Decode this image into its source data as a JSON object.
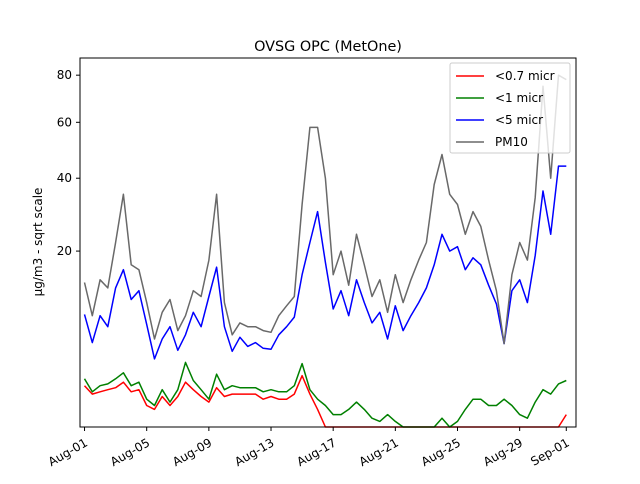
{
  "chart_data": {
    "type": "line",
    "title": "OVSG OPC (MetOne)",
    "xlabel": "",
    "ylabel": "µg/m3 - sqrt scale",
    "y_scale": "sqrt",
    "ylim": [
      0,
      88
    ],
    "xlim": [
      "2024-07-31T17:00",
      "2024-09-01T15:00"
    ],
    "x_tick_labels": [
      "Aug-01",
      "Aug-05",
      "Aug-09",
      "Aug-13",
      "Aug-17",
      "Aug-21",
      "Aug-25",
      "Aug-29",
      "Sep-01"
    ],
    "x_tick_dates": [
      "2024-08-01",
      "2024-08-05",
      "2024-08-09",
      "2024-08-13",
      "2024-08-17",
      "2024-08-21",
      "2024-08-25",
      "2024-08-29",
      "2024-09-01"
    ],
    "y_ticks": [
      20,
      40,
      60,
      80
    ],
    "grid": false,
    "legend_position": "top-right",
    "x": [
      "2024-08-01T00:00",
      "2024-08-01T12:00",
      "2024-08-02T00:00",
      "2024-08-02T12:00",
      "2024-08-03T00:00",
      "2024-08-03T12:00",
      "2024-08-04T00:00",
      "2024-08-04T12:00",
      "2024-08-05T00:00",
      "2024-08-05T12:00",
      "2024-08-06T00:00",
      "2024-08-06T12:00",
      "2024-08-07T00:00",
      "2024-08-07T12:00",
      "2024-08-08T00:00",
      "2024-08-08T12:00",
      "2024-08-09T00:00",
      "2024-08-09T12:00",
      "2024-08-10T00:00",
      "2024-08-10T12:00",
      "2024-08-11T00:00",
      "2024-08-11T12:00",
      "2024-08-12T00:00",
      "2024-08-12T12:00",
      "2024-08-13T00:00",
      "2024-08-13T12:00",
      "2024-08-14T00:00",
      "2024-08-14T12:00",
      "2024-08-15T00:00",
      "2024-08-15T12:00",
      "2024-08-16T00:00",
      "2024-08-16T12:00",
      "2024-08-17T00:00",
      "2024-08-17T12:00",
      "2024-08-18T00:00",
      "2024-08-18T12:00",
      "2024-08-19T00:00",
      "2024-08-19T12:00",
      "2024-08-20T00:00",
      "2024-08-20T12:00",
      "2024-08-21T00:00",
      "2024-08-21T12:00",
      "2024-08-22T00:00",
      "2024-08-22T12:00",
      "2024-08-23T00:00",
      "2024-08-23T12:00",
      "2024-08-24T00:00",
      "2024-08-24T12:00",
      "2024-08-25T00:00",
      "2024-08-25T12:00",
      "2024-08-26T00:00",
      "2024-08-26T12:00",
      "2024-08-27T00:00",
      "2024-08-27T12:00",
      "2024-08-28T00:00",
      "2024-08-28T12:00",
      "2024-08-29T00:00",
      "2024-08-29T12:00",
      "2024-08-30T00:00",
      "2024-08-30T12:00",
      "2024-08-31T00:00",
      "2024-08-31T12:00",
      "2024-09-01T00:00"
    ],
    "series": [
      {
        "name": "<0.7 micr",
        "color": "#ff0000",
        "values": [
          1.1,
          0.7,
          0.8,
          0.9,
          1.0,
          1.3,
          0.8,
          0.9,
          0.3,
          0.2,
          0.6,
          0.3,
          0.6,
          1.3,
          0.9,
          0.6,
          0.4,
          1.0,
          0.6,
          0.7,
          0.7,
          0.7,
          0.7,
          0.5,
          0.6,
          0.5,
          0.5,
          0.7,
          1.7,
          0.7,
          0.2,
          0.0,
          0.0,
          0.0,
          0.0,
          0.0,
          0.0,
          0.0,
          0.0,
          0.0,
          0.0,
          0.0,
          0.0,
          0.0,
          0.0,
          0.0,
          0.0,
          0.0,
          0.0,
          0.0,
          0.0,
          0.0,
          0.0,
          0.0,
          0.0,
          0.0,
          0.0,
          0.0,
          0.0,
          0.0,
          0.0,
          0.0,
          0.1
        ]
      },
      {
        "name": "<1 micr",
        "color": "#008000",
        "values": [
          1.5,
          0.8,
          1.1,
          1.2,
          1.5,
          1.9,
          1.1,
          1.3,
          0.5,
          0.3,
          0.9,
          0.4,
          0.9,
          2.7,
          1.4,
          0.9,
          0.5,
          1.8,
          0.9,
          1.1,
          1.0,
          1.0,
          1.0,
          0.8,
          0.9,
          0.8,
          0.8,
          1.1,
          2.6,
          0.9,
          0.5,
          0.3,
          0.1,
          0.1,
          0.2,
          0.4,
          0.2,
          0.05,
          0.02,
          0.1,
          0.02,
          0.0,
          0.0,
          0.0,
          0.0,
          0.0,
          0.05,
          0.0,
          0.02,
          0.2,
          0.5,
          0.5,
          0.3,
          0.3,
          0.5,
          0.3,
          0.1,
          0.05,
          0.4,
          0.9,
          0.7,
          1.2,
          1.4
        ]
      },
      {
        "name": "<5 micr",
        "color": "#0000ff",
        "values": [
          8.2,
          4.6,
          8.0,
          6.5,
          12.5,
          16.0,
          10.5,
          12.0,
          6.8,
          3.0,
          5.0,
          6.5,
          3.8,
          5.5,
          8.5,
          6.5,
          11.0,
          16.5,
          6.5,
          3.7,
          5.2,
          4.2,
          4.6,
          4.0,
          3.9,
          5.5,
          6.5,
          7.8,
          15.0,
          22.0,
          30.0,
          17.5,
          9.0,
          12.0,
          8.0,
          14.0,
          10.0,
          7.0,
          8.5,
          5.0,
          9.5,
          6.0,
          8.0,
          10.0,
          12.5,
          17.0,
          24.0,
          20.0,
          21.0,
          16.0,
          18.5,
          17.0,
          13.0,
          9.8,
          4.5,
          12.0,
          14.0,
          10.0,
          19.0,
          36.0,
          24.0,
          44.0,
          44.0
        ]
      },
      {
        "name": "PM10",
        "color": "#696969",
        "values": [
          13.5,
          8.0,
          14.0,
          12.5,
          22.0,
          35.0,
          17.0,
          16.0,
          10.0,
          5.0,
          8.5,
          10.5,
          6.0,
          8.0,
          12.0,
          11.0,
          18.0,
          35.0,
          10.0,
          5.5,
          7.0,
          6.5,
          6.5,
          6.0,
          5.8,
          8.0,
          9.5,
          11.0,
          32.0,
          58.0,
          58.0,
          40.0,
          15.0,
          20.0,
          13.0,
          24.0,
          17.0,
          11.0,
          14.0,
          8.5,
          15.0,
          10.0,
          14.0,
          18.0,
          22.0,
          38.0,
          48.0,
          35.0,
          32.0,
          24.0,
          30.0,
          26.0,
          18.0,
          12.0,
          4.5,
          15.0,
          22.0,
          18.0,
          34.0,
          75.0,
          40.0,
          80.0,
          78.0
        ]
      }
    ]
  }
}
